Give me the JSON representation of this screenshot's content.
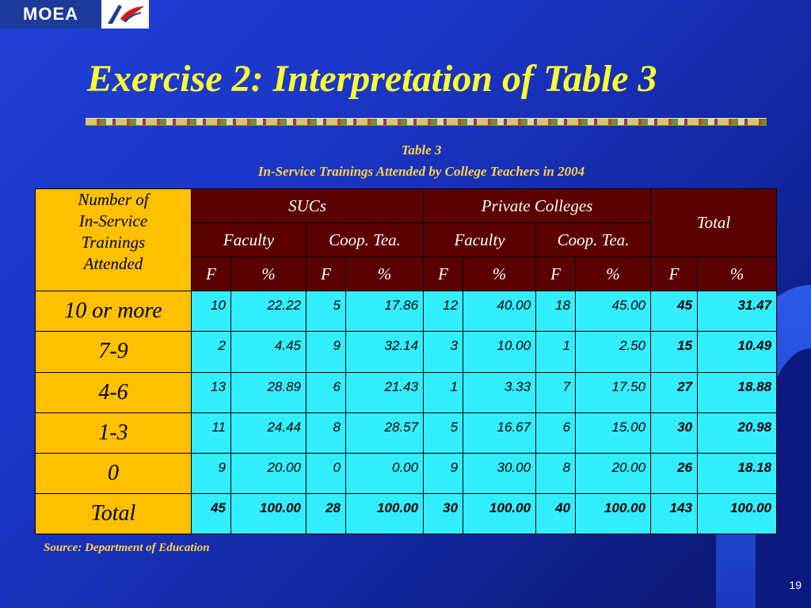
{
  "logo": {
    "text": "MOEA",
    "icon": "moea-bird-logo-icon"
  },
  "title": "Exercise 2: Interpretation of Table 3",
  "caption": {
    "line1": "Table 3",
    "line2": "In-Service Trainings Attended by College Teachers in 2004"
  },
  "table": {
    "corner": [
      "Number of",
      "In-Service",
      "Trainings",
      "Attended"
    ],
    "groups": {
      "sucs": "SUCs",
      "private": "Private Colleges",
      "total": "Total"
    },
    "subgroups": [
      "Faculty",
      "Coop. Tea.",
      "Faculty",
      "Coop. Tea."
    ],
    "col_headers": [
      "F",
      "%",
      "F",
      "%",
      "F",
      "%",
      "F",
      "%",
      "F",
      "%"
    ],
    "rows": [
      {
        "label": "10 or more",
        "cells": [
          "10",
          "22.22",
          "5",
          "17.86",
          "12",
          "40.00",
          "18",
          "45.00",
          "45",
          "31.47"
        ]
      },
      {
        "label": "7-9",
        "cells": [
          "2",
          "4.45",
          "9",
          "32.14",
          "3",
          "10.00",
          "1",
          "2.50",
          "15",
          "10.49"
        ]
      },
      {
        "label": "4-6",
        "cells": [
          "13",
          "28.89",
          "6",
          "21.43",
          "1",
          "3.33",
          "7",
          "17.50",
          "27",
          "18.88"
        ]
      },
      {
        "label": "1-3",
        "cells": [
          "11",
          "24.44",
          "8",
          "28.57",
          "5",
          "16.67",
          "6",
          "15.00",
          "30",
          "20.98"
        ]
      },
      {
        "label": "0",
        "cells": [
          "9",
          "20.00",
          "0",
          "0.00",
          "9",
          "30.00",
          "8",
          "20.00",
          "26",
          "18.18"
        ]
      },
      {
        "label": "Total",
        "cells": [
          "45",
          "100.00",
          "28",
          "100.00",
          "30",
          "100.00",
          "40",
          "100.00",
          "143",
          "100.00"
        ]
      }
    ]
  },
  "source": "Source: Department of Education",
  "page_number": "19",
  "colors": {
    "background": "#1a35c4",
    "title": "#ffff33",
    "caption": "#ffd24a",
    "header_bg": "#5b0000",
    "label_bg": "#ffc000",
    "cell_bg": "#33eeff"
  }
}
